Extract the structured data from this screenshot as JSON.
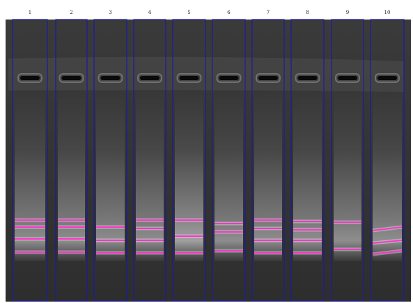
{
  "lanes": [
    {
      "label": "1"
    },
    {
      "label": "2"
    },
    {
      "label": "3"
    },
    {
      "label": "4"
    },
    {
      "label": "5"
    },
    {
      "label": "6"
    },
    {
      "label": "7"
    },
    {
      "label": "8"
    },
    {
      "label": "9"
    },
    {
      "label": "10"
    }
  ]
}
